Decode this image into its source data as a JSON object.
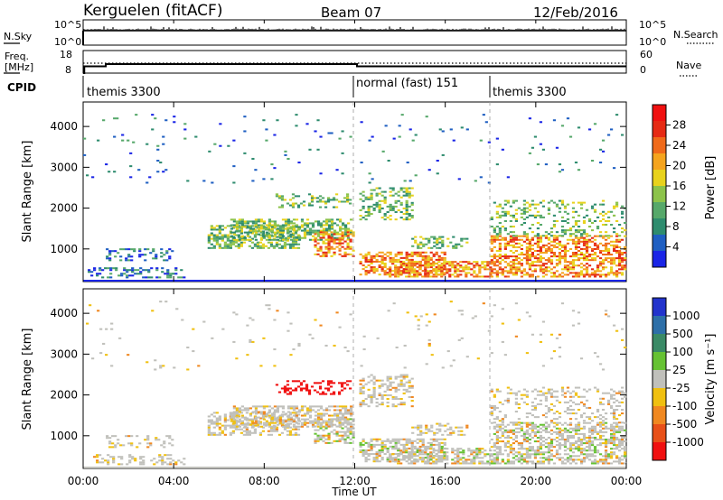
{
  "header": {
    "station": "Kerguelen (fitACF)",
    "beam": "Beam 07",
    "date": "12/Feb/2016"
  },
  "colors": {
    "scatter_gray": "#c0c0bb",
    "power_scale": [
      "#1a25e6",
      "#1f5fc2",
      "#2e8c6e",
      "#56a86a",
      "#8cc34a",
      "#e8d21c",
      "#f5a41e",
      "#f06a1a",
      "#e62a14",
      "#f01010"
    ],
    "velocity_scale": [
      "#2233cc",
      "#2d6fa8",
      "#3a8a66",
      "#66c233",
      "#c0c0bb",
      "#f0c010",
      "#f08820",
      "#e85018",
      "#f01010"
    ]
  },
  "chart_data": {
    "type": "heatmap",
    "time_axis": {
      "label": "Time UT",
      "ticks": [
        "00:00",
        "04:00",
        "08:00",
        "12:00",
        "16:00",
        "20:00",
        "00:00"
      ],
      "range_hours": [
        0,
        24
      ]
    },
    "sky_panel": {
      "left_label": "N.Sky",
      "left_ticks": [
        "10^5",
        "10^0"
      ],
      "right_ticks": [
        "10^5",
        "10^0"
      ],
      "right_label": "N.Search"
    },
    "freq_panel": {
      "left_label_1": "Freq.",
      "left_label_2": "[MHz]",
      "left_ticks": [
        "18",
        "8"
      ],
      "right_ticks": [
        "60",
        "0"
      ],
      "right_label": "Nave",
      "freq_steps_mhz": [
        [
          0,
          8
        ],
        [
          0.05,
          11
        ],
        [
          1,
          12
        ],
        [
          12,
          12
        ],
        [
          12.1,
          11
        ],
        [
          24,
          11
        ]
      ]
    },
    "cpid": {
      "label": "CPID",
      "segments": [
        {
          "start_hour": 0,
          "end_hour": 12,
          "name": "themis 3300"
        },
        {
          "start_hour": 12,
          "end_hour": 18,
          "name": "normal (fast) 151"
        },
        {
          "start_hour": 18,
          "end_hour": 24,
          "name": "themis 3300"
        }
      ]
    },
    "power_panel": {
      "ylabel": "Slant Range [km]",
      "yticks": [
        1000,
        2000,
        3000,
        4000
      ],
      "ylim": [
        200,
        4600
      ],
      "colorbar_label": "Power [dB]",
      "colorbar_ticks": [
        4,
        8,
        12,
        16,
        20,
        24,
        28
      ]
    },
    "velocity_panel": {
      "ylabel": "Slant Range [km]",
      "yticks": [
        1000,
        2000,
        3000,
        4000
      ],
      "ylim": [
        200,
        4600
      ],
      "colorbar_label": "Velocity [m s⁻¹]",
      "colorbar_ticks": [
        "1000",
        "500",
        "100",
        "25",
        "-25",
        "-100",
        "-500",
        "-1000"
      ]
    }
  }
}
